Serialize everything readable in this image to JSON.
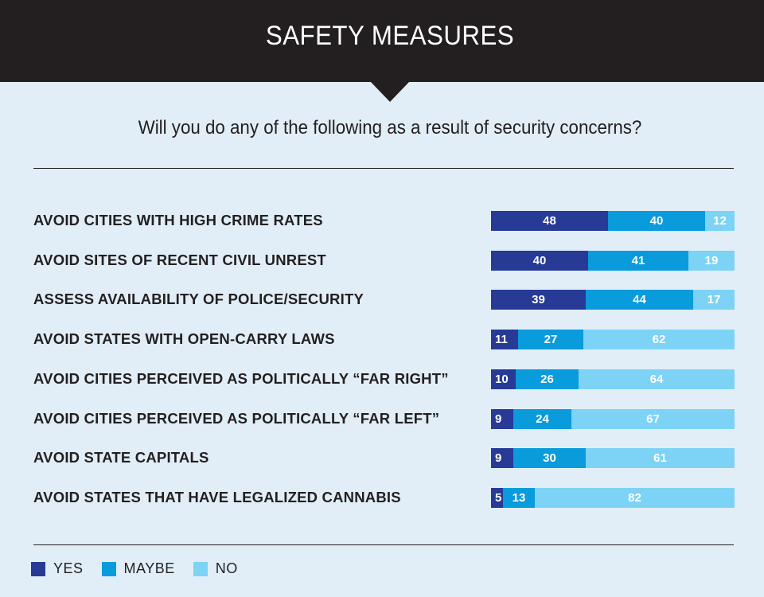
{
  "header": {
    "title": "SAFETY MEASURES"
  },
  "question": "Will you do any of the following as a result of security concerns?",
  "colors": {
    "header_bg": "#231F20",
    "background": "#E1EEF8",
    "yes": "#273A96",
    "maybe": "#0A9BDC",
    "no": "#7DD3F5"
  },
  "legend": [
    {
      "label": "YES",
      "key": "yes"
    },
    {
      "label": "MAYBE",
      "key": "maybe"
    },
    {
      "label": "NO",
      "key": "no"
    }
  ],
  "chart_data": {
    "type": "bar",
    "orientation": "horizontal",
    "stacked": true,
    "title": "SAFETY MEASURES",
    "subtitle": "Will you do any of the following as a result of security concerns?",
    "xlabel": "",
    "ylabel": "",
    "xlim": [
      0,
      100
    ],
    "grid": false,
    "legend_position": "bottom-left",
    "categories": [
      "AVOID CITIES WITH HIGH CRIME RATES",
      "AVOID SITES OF RECENT CIVIL UNREST",
      "ASSESS AVAILABILITY OF POLICE/SECURITY",
      "AVOID STATES WITH OPEN-CARRY LAWS",
      "AVOID CITIES PERCEIVED AS POLITICALLY “FAR RIGHT”",
      "AVOID CITIES PERCEIVED AS POLITICALLY “FAR LEFT”",
      "AVOID STATE CAPITALS",
      "AVOID STATES THAT HAVE LEGALIZED CANNABIS"
    ],
    "series": [
      {
        "name": "YES",
        "values": [
          48,
          40,
          39,
          11,
          10,
          9,
          9,
          5
        ]
      },
      {
        "name": "MAYBE",
        "values": [
          40,
          41,
          44,
          27,
          26,
          24,
          30,
          13
        ]
      },
      {
        "name": "NO",
        "values": [
          12,
          19,
          17,
          62,
          64,
          67,
          61,
          82
        ]
      }
    ]
  }
}
